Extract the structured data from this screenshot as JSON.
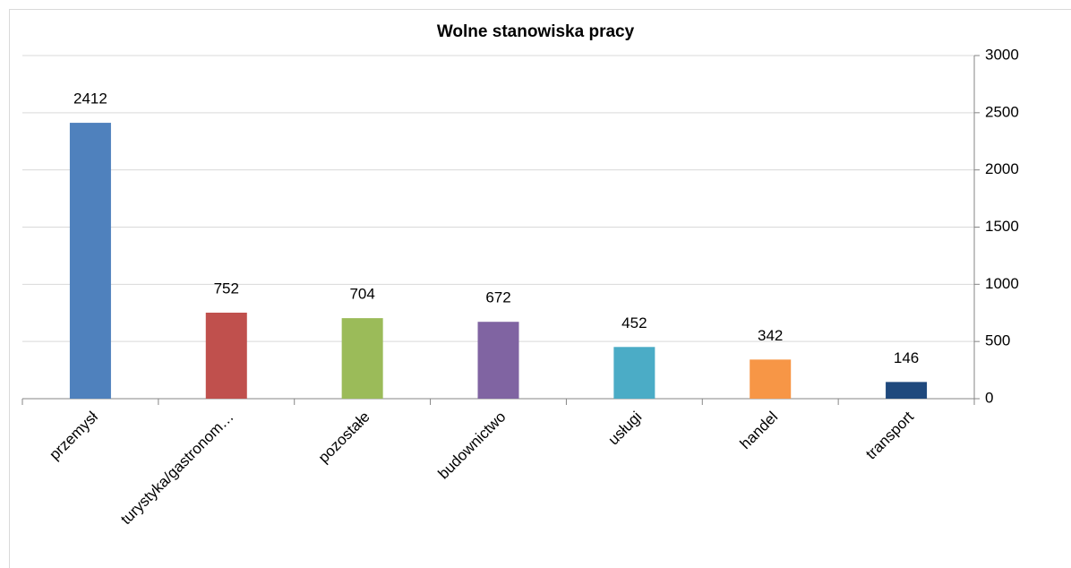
{
  "chart_data": {
    "type": "bar",
    "title": "Wolne stanowiska pracy",
    "categories": [
      "przemysł",
      "turystyka/gastronom…",
      "pozostałe",
      "budownictwo",
      "usługi",
      "handel",
      "transport"
    ],
    "values": [
      2412,
      752,
      704,
      672,
      452,
      342,
      146
    ],
    "colors": [
      "#4f81bd",
      "#c0504d",
      "#9bbb59",
      "#8064a2",
      "#4bacc6",
      "#f79646",
      "#1f497d"
    ],
    "ylim": [
      0,
      3000
    ],
    "yticks": [
      0,
      500,
      1000,
      1500,
      2000,
      2500,
      3000
    ],
    "grid": true,
    "y_axis_side": "right"
  }
}
